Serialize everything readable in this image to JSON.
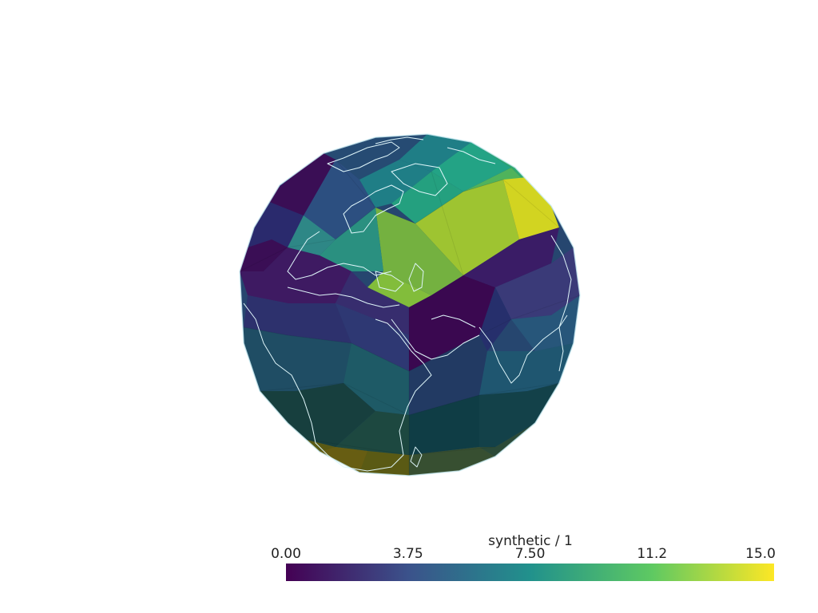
{
  "scene": {
    "name": "globe-mesh-plot",
    "background": "#ffffff",
    "coastline_color": "#cfeff5",
    "colormap": "viridis",
    "colormap_stops": [
      "#440154",
      "#3b528b",
      "#21918c",
      "#5ec962",
      "#fde725"
    ]
  },
  "scalar_bar": {
    "title": "synthetic / 1",
    "ticks": [
      "0.00",
      "3.75",
      "7.50",
      "11.2",
      "15.0"
    ],
    "range": [
      0,
      15
    ]
  }
}
